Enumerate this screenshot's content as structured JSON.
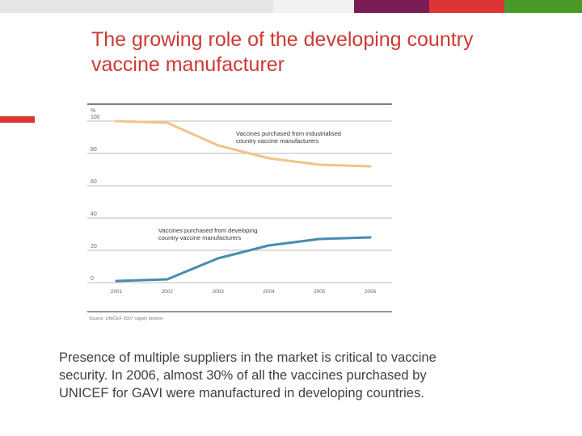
{
  "colors": {
    "title": "#cc3a33",
    "accent_bar": "#dd3535",
    "industrialised_series": "#f0c48a",
    "developing_series": "#4a8bb0",
    "grid": "#bbbbbb",
    "axis_text": "#666666"
  },
  "top_bar": [
    {
      "color": "#e6e6e6"
    },
    {
      "color": "#f2f2f2"
    },
    {
      "color": "#7a1d54"
    },
    {
      "color": "#dd3535"
    },
    {
      "color": "#4a9a2a"
    }
  ],
  "slide": {
    "title_lines": [
      "The growing role of the developing country",
      "vaccine manufacturer"
    ],
    "caption_lines": [
      "Presence of multiple suppliers in the market is critical to vaccine",
      "security. In 2006, almost 30% of all the vaccines purchased by",
      "UNICEF for GAVI were manufactured in developing countries."
    ]
  },
  "chart_data": {
    "type": "line",
    "unit_label": "%",
    "x": [
      "2001",
      "2002",
      "2003",
      "2004",
      "2005",
      "2006"
    ],
    "ylim": [
      0,
      100
    ],
    "yticks": [
      0,
      20,
      40,
      60,
      80,
      100
    ],
    "grid": true,
    "series": [
      {
        "name_lines": [
          "Vaccines purchased from industrialised",
          "country vaccine manufacturers"
        ],
        "values": [
          100,
          99,
          85,
          77,
          73,
          72
        ],
        "color": "#f0c48a"
      },
      {
        "name_lines": [
          "Vaccines purchased from developing",
          "country vaccine manufacturers"
        ],
        "values": [
          1,
          2,
          15,
          23,
          27,
          28
        ],
        "color": "#4a8bb0"
      }
    ],
    "source": "Source: UNICEF 2007 supply division"
  }
}
